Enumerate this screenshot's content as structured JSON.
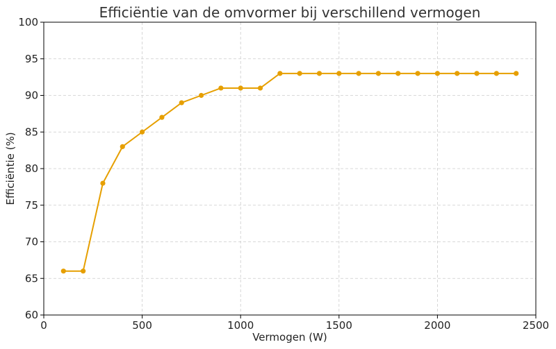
{
  "chart_data": {
    "type": "line",
    "title": "Efficiëntie van de omvormer bij verschillend vermogen",
    "xlabel": "Vermogen (W)",
    "ylabel": "Efficiëntie (%)",
    "xlim": [
      0,
      2500
    ],
    "ylim": [
      60,
      100
    ],
    "xticks": [
      0,
      500,
      1000,
      1500,
      2000,
      2500
    ],
    "yticks": [
      60,
      65,
      70,
      75,
      80,
      85,
      90,
      95,
      100
    ],
    "grid": true,
    "series": [
      {
        "color": "#E69F00",
        "marker": "circle",
        "x": [
          100,
          200,
          300,
          400,
          500,
          600,
          700,
          800,
          900,
          1000,
          1100,
          1200,
          1300,
          1400,
          1500,
          1600,
          1700,
          1800,
          1900,
          2000,
          2100,
          2200,
          2300,
          2400
        ],
        "y": [
          66,
          66,
          78,
          83,
          85,
          87,
          89,
          90,
          91,
          91,
          91,
          93,
          93,
          93,
          93,
          93,
          93,
          93,
          93,
          93,
          93,
          93,
          93,
          93
        ]
      }
    ]
  }
}
